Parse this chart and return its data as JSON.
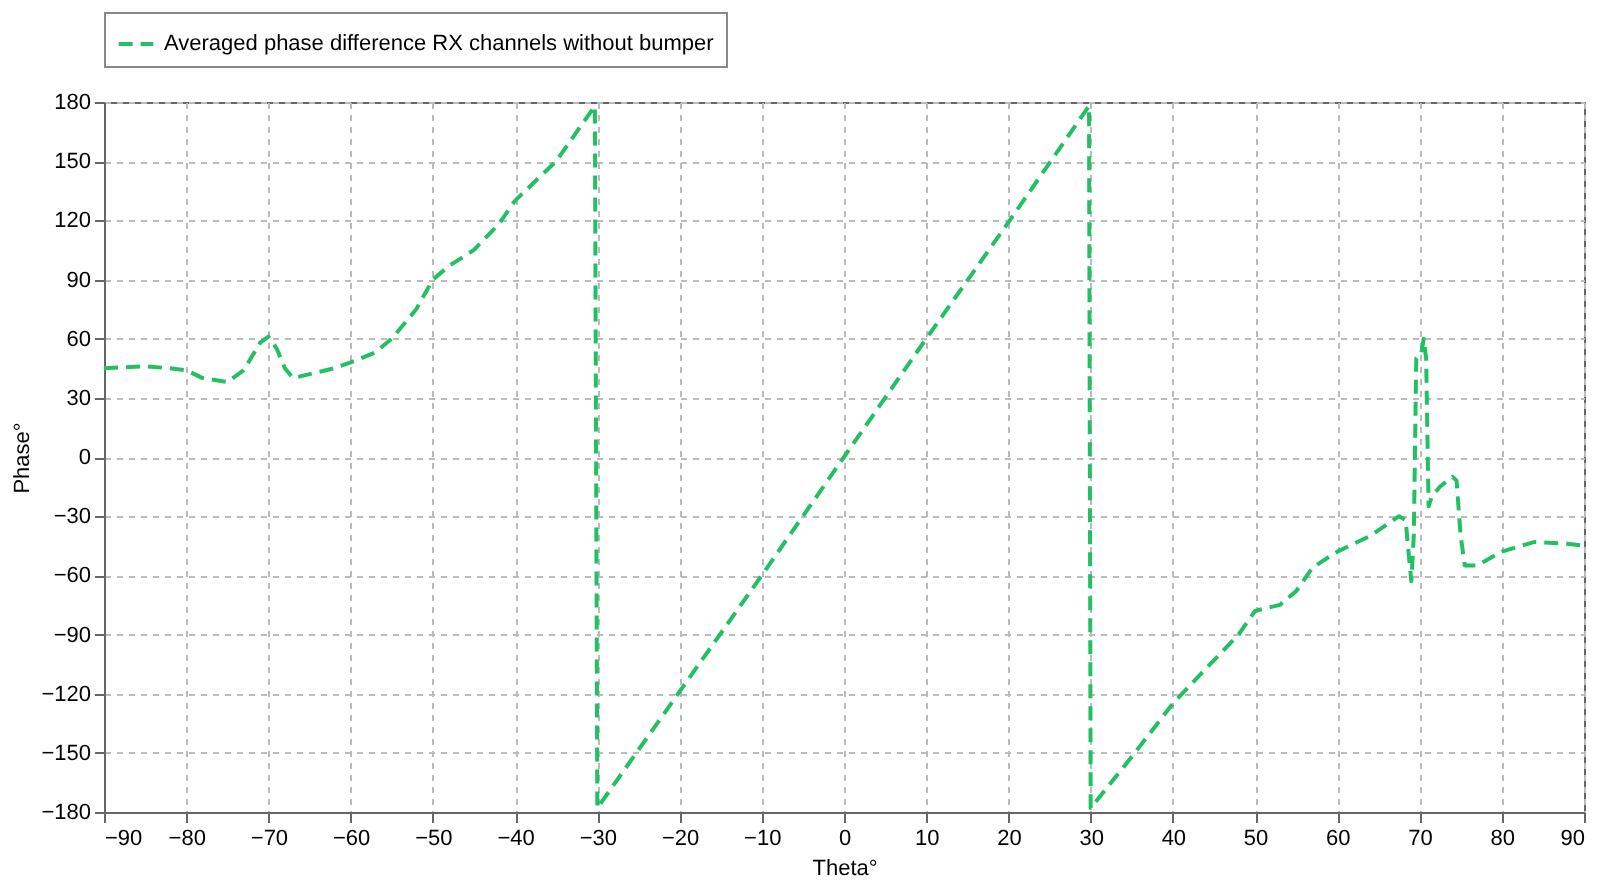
{
  "chart_data": {
    "type": "line",
    "xlabel": "Theta°",
    "ylabel": "Phase°",
    "xlim": [
      -90,
      90
    ],
    "xticks": [
      -90,
      -80,
      -70,
      -60,
      -50,
      -40,
      -30,
      -20,
      -10,
      0,
      10,
      20,
      30,
      40,
      50,
      60,
      70,
      80,
      90
    ],
    "ylim": [
      -180,
      180
    ],
    "yticks": [
      -180,
      -150,
      -120,
      -90,
      -60,
      -30,
      0,
      30,
      60,
      90,
      120,
      150,
      180
    ],
    "grid": true,
    "legend": "top",
    "line_style": "dashed",
    "marker": "none",
    "series": [
      {
        "name": "Averaged phase difference RX channels without bumper",
        "color": "#22c063",
        "x": [
          -90,
          -85,
          -82,
          -80,
          -78,
          -75,
          -73,
          -71,
          -70,
          -69,
          -68,
          -67,
          -65,
          -62,
          -60,
          -57,
          -55,
          -52,
          -50,
          -48,
          -45,
          -42,
          -40,
          -35,
          -30.3,
          -30,
          -20,
          -10,
          0,
          10,
          20,
          29.8,
          30,
          35,
          40,
          45,
          48,
          50,
          53,
          55,
          57,
          60,
          64,
          67.5,
          68.3,
          68.7,
          69,
          69.3,
          69.6,
          70.2,
          70.5,
          70.8,
          71.1,
          71.5,
          72.5,
          74,
          74.5,
          75,
          75.5,
          77,
          80,
          84,
          88,
          90
        ],
        "values": [
          45,
          46,
          45,
          44,
          40,
          38,
          44,
          58,
          61,
          55,
          45,
          40,
          42,
          45,
          48,
          53,
          60,
          75,
          90,
          97,
          105,
          118,
          130,
          150,
          178,
          -178,
          -119,
          -60,
          0,
          60,
          119,
          178,
          -178,
          -152,
          -125,
          -103,
          -90,
          -78,
          -75,
          -68,
          -56,
          -48,
          -40,
          -30,
          -32,
          -50,
          -63,
          -40,
          50,
          52,
          60,
          50,
          -25,
          -20,
          -15,
          -10,
          -12,
          -40,
          -55,
          -55,
          -48,
          -43,
          -44,
          -45
        ]
      }
    ]
  }
}
